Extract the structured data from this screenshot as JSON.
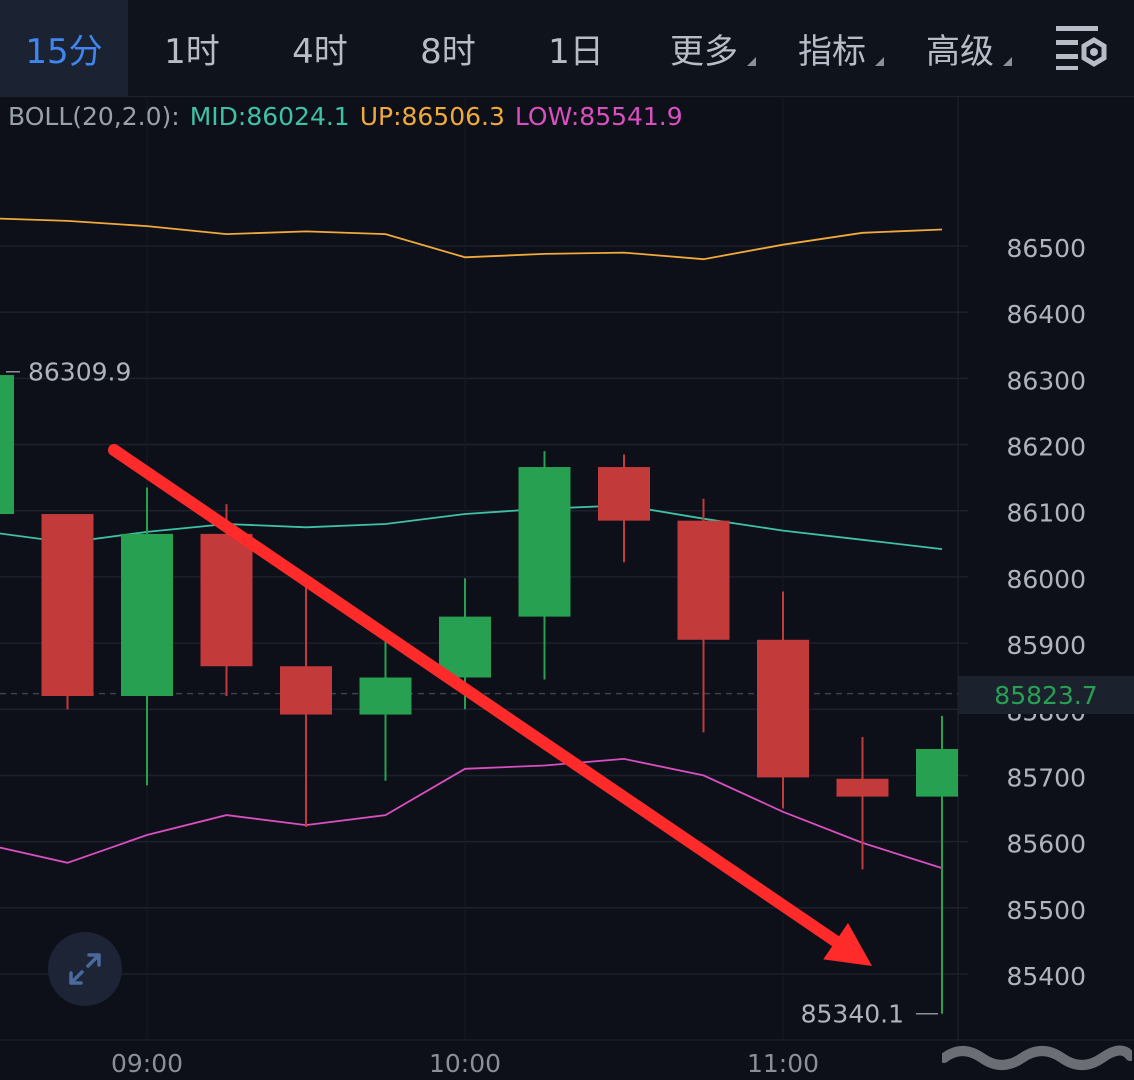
{
  "tabs": [
    {
      "label": "15分",
      "active": true,
      "dropdown": false
    },
    {
      "label": "1时",
      "active": false,
      "dropdown": false
    },
    {
      "label": "4时",
      "active": false,
      "dropdown": false
    },
    {
      "label": "8时",
      "active": false,
      "dropdown": false
    },
    {
      "label": "1日",
      "active": false,
      "dropdown": false
    },
    {
      "label": "更多",
      "active": false,
      "dropdown": true
    },
    {
      "label": "指标",
      "active": false,
      "dropdown": true
    },
    {
      "label": "高级",
      "active": false,
      "dropdown": true
    }
  ],
  "settings_icon": "chart-settings-icon",
  "indicator": {
    "name": "BOLL(20,2.0):",
    "mid": "MID:86024.1",
    "up": "UP:86506.3",
    "low": "LOW:85541.9",
    "colors": {
      "name": "#9aa0aa",
      "mid": "#3fc1a6",
      "up": "#f0a93c",
      "low": "#d94fc0"
    }
  },
  "current_price": "85823.7",
  "colors": {
    "up": "#27a052",
    "down": "#c33a3a",
    "mid_line": "#3fc1a6",
    "upper_line": "#f0a93c",
    "lower_line": "#d94fc0",
    "arrow": "#ff2b2b"
  },
  "expand_icon": "expand-icon",
  "chart_data": {
    "type": "candlestick",
    "ylim": [
      85270,
      86650
    ],
    "y_ticks": [
      86500,
      86400,
      86300,
      86200,
      86100,
      86000,
      85900,
      85800,
      85700,
      85600,
      85500,
      85400
    ],
    "x_ticks": [
      {
        "label": "09:00",
        "index": 2
      },
      {
        "label": "10:00",
        "index": 6
      },
      {
        "label": "11:00",
        "index": 10
      }
    ],
    "candles": [
      {
        "open": 86095,
        "close": 86305,
        "high": 86310,
        "low": 86090
      },
      {
        "open": 86095,
        "close": 85820,
        "high": 86095,
        "low": 85800
      },
      {
        "open": 85820,
        "close": 86065,
        "high": 86135,
        "low": 85685
      },
      {
        "open": 86065,
        "close": 85865,
        "high": 86110,
        "low": 85820
      },
      {
        "open": 85865,
        "close": 85792,
        "high": 85985,
        "low": 85622
      },
      {
        "open": 85792,
        "close": 85848,
        "high": 85902,
        "low": 85692
      },
      {
        "open": 85848,
        "close": 85940,
        "high": 85998,
        "low": 85800
      },
      {
        "open": 85940,
        "close": 86166,
        "high": 86190,
        "low": 85845
      },
      {
        "open": 86166,
        "close": 86085,
        "high": 86185,
        "low": 86022
      },
      {
        "open": 86085,
        "close": 85905,
        "high": 86118,
        "low": 85765
      },
      {
        "open": 85905,
        "close": 85697,
        "high": 85978,
        "low": 85650
      },
      {
        "open": 85695,
        "close": 85668,
        "high": 85758,
        "low": 85558
      },
      {
        "open": 85668,
        "close": 85740,
        "high": 85790,
        "low": 85340
      }
    ],
    "bollinger": {
      "mid": [
        86068,
        86052,
        86068,
        86080,
        86075,
        86080,
        86095,
        86103,
        86108,
        86088,
        86070,
        86056,
        86042
      ],
      "upper": [
        86542,
        86538,
        86530,
        86518,
        86522,
        86518,
        86483,
        86488,
        86490,
        86480,
        86502,
        86520,
        86525
      ],
      "lower": [
        85595,
        85568,
        85610,
        85640,
        85625,
        85640,
        85710,
        85715,
        85725,
        85700,
        85645,
        85598,
        85560
      ]
    },
    "annotations": [
      {
        "text": "86309.9",
        "type": "high"
      },
      {
        "text": "85340.1",
        "type": "low"
      }
    ]
  }
}
